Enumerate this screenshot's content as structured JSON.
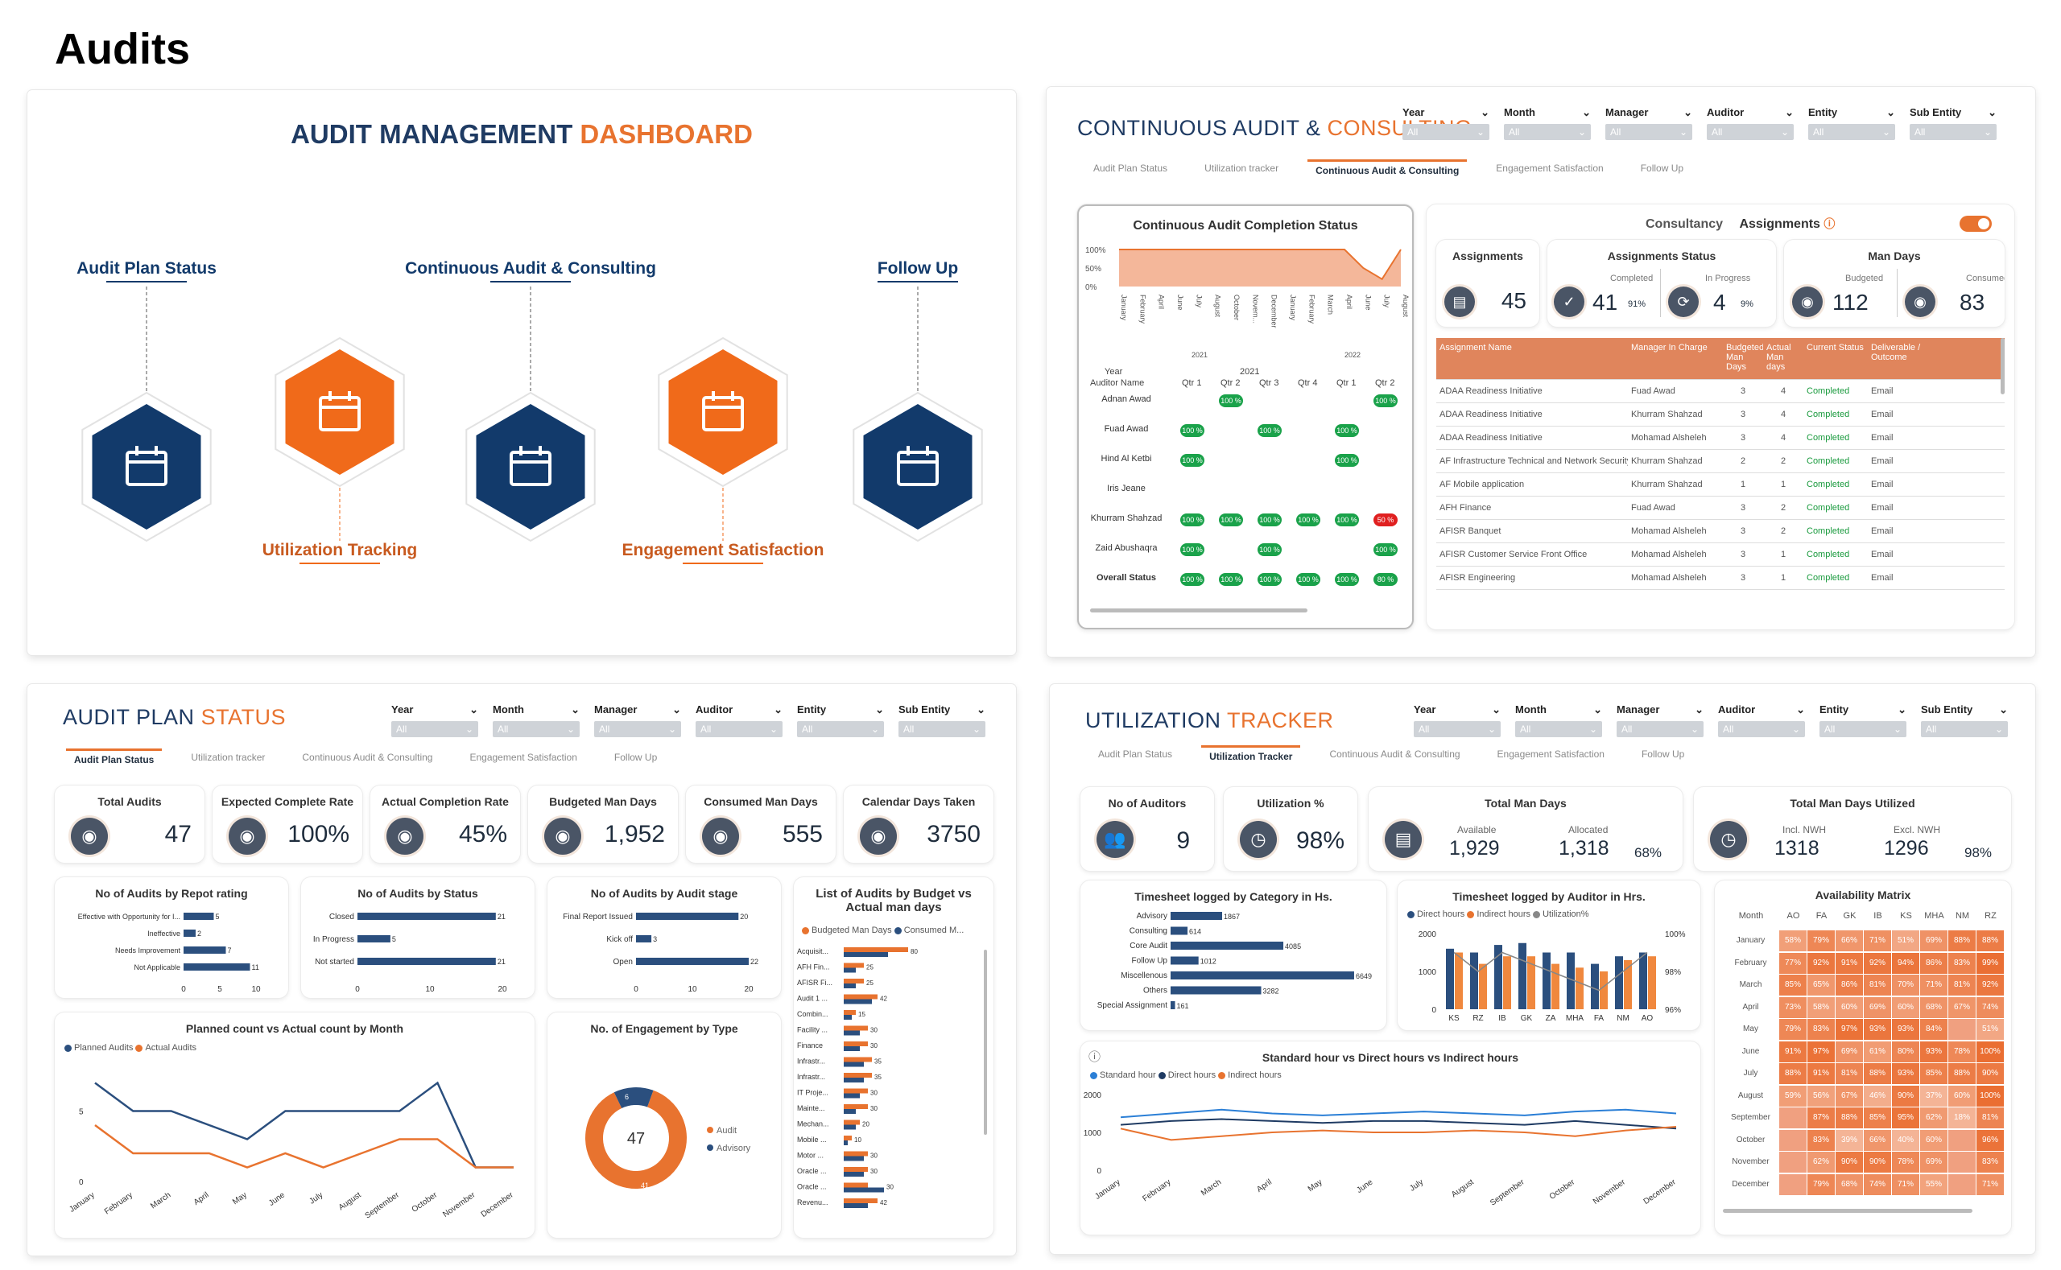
{
  "page_title": "Audits",
  "dashboard": {
    "title_a": "AUDIT MANAGEMENT ",
    "title_b": "DASHBOARD",
    "nodes": [
      {
        "label": "Audit Plan Status",
        "icon": "calendar-icon",
        "color": "navy",
        "pos": "top"
      },
      {
        "label": "Utilization Tracking",
        "icon": "calendar-clock-icon",
        "color": "orange",
        "pos": "bottom"
      },
      {
        "label": "Continuous Audit & Consulting",
        "icon": "calendar-user-icon",
        "color": "navy",
        "pos": "top"
      },
      {
        "label": "Engagement Satisfaction",
        "icon": "rating-stars-icon",
        "color": "orange",
        "pos": "bottom"
      },
      {
        "label": "Follow Up",
        "icon": "checklist-chart-icon",
        "color": "navy",
        "pos": "top"
      }
    ]
  },
  "filters": {
    "labels": [
      "Year",
      "Month",
      "Manager",
      "Auditor",
      "Entity",
      "Sub Entity"
    ],
    "value": "All"
  },
  "tabs": [
    "Audit Plan Status",
    "Utilization tracker",
    "Continuous Audit & Consulting",
    "Engagement Satisfaction",
    "Follow Up"
  ],
  "tabs_ut": [
    "Audit Plan Status",
    "Utilization Tracker",
    "Continuous Audit & Consulting",
    "Engagement Satisfaction",
    "Follow Up"
  ],
  "continuous": {
    "title_a": "CONTINUOUS AUDIT & ",
    "title_b": "CONSULTING",
    "completion_title": "Continuous Audit Completion Status",
    "y_ticks": [
      "100%",
      "50%",
      "0%"
    ],
    "months": [
      "January",
      "February",
      "April",
      "June",
      "July",
      "August",
      "October",
      "Novem...",
      "December",
      "January",
      "February",
      "March",
      "April",
      "June",
      "July",
      "August"
    ],
    "years": [
      "2021",
      "2022"
    ],
    "grid_year": "2021",
    "grid_header": [
      "Year",
      "Auditor Name",
      "Qtr 1",
      "Qtr 2",
      "Qtr 3",
      "Qtr 4",
      "Qtr 1",
      "Qtr 2"
    ],
    "auditors": [
      "Adnan Awad",
      "Fuad Awad",
      "Hind Al Ketbi",
      "Iris Jeane",
      "Khurram Shahzad",
      "Zaid Abushaqra",
      "Overall Status"
    ],
    "pill_value": "100 %",
    "pill_red": "50 %",
    "pill_80": "80 %",
    "consultancy": "Consultancy",
    "assignments_toggle": "Assignments",
    "kpi_assign": {
      "label": "Assignments",
      "value": "45"
    },
    "kpi_status": {
      "label": "Assignments Status",
      "completed_lbl": "Completed",
      "completed": "41",
      "completed_pct": "91%",
      "inprog_lbl": "In Progress",
      "inprog": "4",
      "inprog_pct": "9%"
    },
    "kpi_mandays": {
      "label": "Man Days",
      "budget_lbl": "Budgeted",
      "budget": "112",
      "consumed_lbl": "Consumed",
      "consumed": "83"
    },
    "table_head": [
      "Assignment Name",
      "Manager In Charge",
      "Budgeted Man Days",
      "Actual Man days",
      "Current Status",
      "Deliverable / Outcome"
    ],
    "table_rows": [
      [
        "ADAA Readiness Initiative",
        "Fuad Awad",
        "3",
        "4",
        "Completed",
        "Email"
      ],
      [
        "ADAA Readiness Initiative",
        "Khurram Shahzad",
        "3",
        "4",
        "Completed",
        "Email"
      ],
      [
        "ADAA Readiness Initiative",
        "Mohamad Alsheleh",
        "3",
        "4",
        "Completed",
        "Email"
      ],
      [
        "AF Infrastructure Technical and Network Security",
        "Khurram Shahzad",
        "2",
        "2",
        "Completed",
        "Email"
      ],
      [
        "AF Mobile application",
        "Khurram Shahzad",
        "1",
        "1",
        "Completed",
        "Email"
      ],
      [
        "AFH Finance",
        "Fuad Awad",
        "3",
        "2",
        "Completed",
        "Email"
      ],
      [
        "AFISR Banquet",
        "Mohamad Alsheleh",
        "3",
        "2",
        "Completed",
        "Email"
      ],
      [
        "AFISR Customer Service Front Office",
        "Mohamad Alsheleh",
        "3",
        "1",
        "Completed",
        "Email"
      ],
      [
        "AFISR Engineering",
        "Mohamad Alsheleh",
        "3",
        "1",
        "Completed",
        "Email"
      ]
    ]
  },
  "plan": {
    "title_a": "AUDIT PLAN ",
    "title_b": "STATUS",
    "kpis": [
      {
        "label": "Total Audits",
        "value": "47",
        "icon": "clipboard-icon"
      },
      {
        "label": "Expected Complete Rate",
        "value": "100%",
        "icon": "target-icon"
      },
      {
        "label": "Actual Completion Rate",
        "value": "45%",
        "icon": "double-check-icon"
      },
      {
        "label": "Budgeted Man Days",
        "value": "1,952",
        "icon": "user-calendar-icon"
      },
      {
        "label": "Consumed Man Days",
        "value": "555",
        "icon": "user-check-icon"
      },
      {
        "label": "Calendar Days Taken",
        "value": "3750",
        "icon": "calendar-icon"
      }
    ],
    "rating_title": "No of Audits by Repot rating",
    "status_title": "No of Audits by Status",
    "stage_title": "No of Audits by Audit stage",
    "budget_title": "List of Audits by Budget vs Actual man days",
    "budget_legend": [
      "Budgeted Man Days",
      "Consumed M..."
    ],
    "line_title": "Planned count vs Actual count by Month",
    "line_legend": [
      "Planned Audits",
      "Actual Audits"
    ],
    "donut_title": "No. of Engagement by Type",
    "donut_legend": [
      "Audit",
      "Advisory"
    ]
  },
  "util": {
    "title_a": "UTILIZATION ",
    "title_b": "TRACKER",
    "auditors": {
      "label": "No of Auditors",
      "value": "9"
    },
    "utilization": {
      "label": "Utilization %",
      "value": "98%"
    },
    "tmd": {
      "label": "Total Man Days",
      "avail_lbl": "Available",
      "avail": "1,929",
      "alloc_lbl": "Allocated",
      "alloc": "1,318",
      "pct": "68%"
    },
    "tmdu": {
      "label": "Total Man Days Utilized",
      "incl_lbl": "Incl. NWH",
      "incl": "1318",
      "excl_lbl": "Excl. NWH",
      "excl": "1296",
      "pct": "98%"
    },
    "cat_title": "Timesheet logged by Category in Hs.",
    "aud_title": "Timesheet logged by Auditor in Hrs.",
    "aud_legend": [
      "Direct hours",
      "Indirect hours",
      "Utilization%"
    ],
    "std_title": "Standard hour vs Direct hours vs Indirect hours",
    "std_legend": [
      "Standard hour",
      "Direct hours",
      "Indirect hours"
    ],
    "avail_title": "Availability Matrix",
    "avail_cols": [
      "Month",
      "AO",
      "FA",
      "GK",
      "IB",
      "KS",
      "MHA",
      "NM",
      "RZ"
    ],
    "avail_rows": [
      [
        "January",
        "58%",
        "79%",
        "66%",
        "71%",
        "51%",
        "69%",
        "88%",
        "88%"
      ],
      [
        "February",
        "77%",
        "92%",
        "91%",
        "92%",
        "94%",
        "86%",
        "83%",
        "99%"
      ],
      [
        "March",
        "85%",
        "65%",
        "86%",
        "81%",
        "70%",
        "71%",
        "81%",
        "92%"
      ],
      [
        "April",
        "73%",
        "58%",
        "60%",
        "69%",
        "60%",
        "68%",
        "67%",
        "74%"
      ],
      [
        "May",
        "79%",
        "83%",
        "97%",
        "93%",
        "93%",
        "84%",
        "",
        "51%"
      ],
      [
        "June",
        "91%",
        "97%",
        "69%",
        "61%",
        "80%",
        "93%",
        "78%",
        "100%"
      ],
      [
        "July",
        "88%",
        "91%",
        "81%",
        "88%",
        "93%",
        "85%",
        "88%",
        "90%"
      ],
      [
        "August",
        "59%",
        "56%",
        "67%",
        "46%",
        "90%",
        "37%",
        "60%",
        "100%"
      ],
      [
        "September",
        "",
        "87%",
        "88%",
        "85%",
        "95%",
        "62%",
        "18%",
        "81%"
      ],
      [
        "October",
        "",
        "83%",
        "39%",
        "66%",
        "40%",
        "60%",
        "",
        "96%"
      ],
      [
        "November",
        "",
        "62%",
        "90%",
        "90%",
        "78%",
        "69%",
        "",
        "83%"
      ],
      [
        "December",
        "",
        "79%",
        "68%",
        "74%",
        "71%",
        "55%",
        "",
        "71%"
      ]
    ]
  },
  "chart_data": [
    {
      "type": "line",
      "title": "Continuous Audit Completion Status",
      "ylim": [
        0,
        100
      ],
      "series": [
        {
          "name": "Completion %",
          "values": [
            100,
            100,
            100,
            100,
            100,
            100,
            100,
            100,
            100,
            100,
            100,
            100,
            100,
            50,
            20,
            100
          ]
        }
      ]
    },
    {
      "type": "bar",
      "title": "No of Audits by Repot rating",
      "categories": [
        "Effective with Opportunity for I...",
        "Ineffective",
        "Needs Improvement",
        "Not Applicable"
      ],
      "values": [
        5,
        2,
        7,
        11
      ],
      "xticks": [
        "0",
        "5",
        "10"
      ]
    },
    {
      "type": "bar",
      "title": "No of Audits by Status",
      "categories": [
        "Closed",
        "In Progress",
        "Not started"
      ],
      "values": [
        21,
        5,
        21
      ],
      "xticks": [
        "0",
        "10",
        "20"
      ]
    },
    {
      "type": "bar",
      "title": "No of Audits by Audit stage",
      "categories": [
        "Final Report Issued",
        "Kick off",
        "Open"
      ],
      "values": [
        20,
        3,
        22
      ],
      "xticks": [
        "0",
        "10",
        "20"
      ]
    },
    {
      "type": "bar",
      "title": "List of Audits by Budget vs Actual man days",
      "categories": [
        "Acquisit...",
        "AFH Fin...",
        "AFISR Fi...",
        "Audit 1 ...",
        "Combin...",
        "Facility ...",
        "Finance",
        "Infrastr...",
        "Infrastr...",
        "IT Proje...",
        "Mainte...",
        "Mechan...",
        "Mobile ...",
        "Motor ...",
        "Oracle ...",
        "Oracle ...",
        "Revenu..."
      ],
      "series": [
        {
          "name": "Budgeted Man Days",
          "values": [
            80,
            25,
            25,
            42,
            15,
            30,
            30,
            35,
            35,
            30,
            30,
            20,
            10,
            30,
            30,
            30,
            42
          ]
        },
        {
          "name": "Consumed Man Days",
          "values": [
            55,
            15,
            15,
            35,
            10,
            20,
            20,
            25,
            25,
            20,
            15,
            15,
            5,
            25,
            25,
            50,
            30
          ]
        }
      ]
    },
    {
      "type": "line",
      "title": "Planned count vs Actual count by Month",
      "categories": [
        "January",
        "February",
        "March",
        "April",
        "May",
        "June",
        "July",
        "August",
        "September",
        "October",
        "November",
        "December"
      ],
      "yticks": [
        "0",
        "5"
      ],
      "series": [
        {
          "name": "Planned Audits",
          "values": [
            7,
            5,
            5,
            4,
            3,
            5,
            5,
            5,
            5,
            7,
            1,
            1
          ]
        },
        {
          "name": "Actual Audits",
          "values": [
            4,
            2,
            2,
            2,
            1,
            2,
            1,
            2,
            3,
            3,
            1,
            1
          ]
        }
      ]
    },
    {
      "type": "pie",
      "title": "No. of Engagement by Type",
      "center_label": "47",
      "categories": [
        "Audit",
        "Advisory"
      ],
      "values": [
        41,
        6
      ]
    },
    {
      "type": "bar",
      "title": "Timesheet logged by Category in Hs.",
      "categories": [
        "Advisory",
        "Consulting",
        "Core Audit",
        "Follow Up",
        "Miscellenous",
        "Others",
        "Special Assignment"
      ],
      "values": [
        1867,
        614,
        4085,
        1012,
        6649,
        3282,
        161
      ]
    },
    {
      "type": "bar",
      "title": "Timesheet logged by Auditor in Hrs.",
      "categories": [
        "KS",
        "RZ",
        "IB",
        "GK",
        "ZA",
        "MHA",
        "FA",
        "NM",
        "AO"
      ],
      "yticks": [
        "0",
        "1000",
        "2000"
      ],
      "y2ticks": [
        "96%",
        "98%",
        "100%"
      ],
      "series": [
        {
          "name": "Direct hours",
          "values": [
            1600,
            1500,
            1700,
            1750,
            1500,
            1500,
            1200,
            1400,
            1500
          ]
        },
        {
          "name": "Indirect hours",
          "values": [
            1500,
            1200,
            1400,
            1400,
            1200,
            1100,
            1000,
            1300,
            1400
          ]
        },
        {
          "name": "Utilization%",
          "values": [
            99,
            98,
            99,
            98.5,
            98,
            97.5,
            97,
            98,
            99
          ]
        }
      ]
    },
    {
      "type": "line",
      "title": "Standard hour vs Direct hours vs Indirect hours",
      "categories": [
        "January",
        "February",
        "March",
        "April",
        "May",
        "June",
        "July",
        "August",
        "September",
        "October",
        "November",
        "December"
      ],
      "yticks": [
        "0",
        "1000",
        "2000"
      ],
      "series": [
        {
          "name": "Standard hour",
          "values": [
            1400,
            1500,
            1600,
            1500,
            1450,
            1500,
            1550,
            1500,
            1450,
            1550,
            1600,
            1500
          ]
        },
        {
          "name": "Direct hours",
          "values": [
            1200,
            1300,
            1350,
            1300,
            1250,
            1300,
            1300,
            1250,
            1200,
            1300,
            1200,
            1100
          ]
        },
        {
          "name": "Indirect hours",
          "values": [
            1100,
            800,
            900,
            1000,
            1050,
            1000,
            1000,
            1050,
            1000,
            900,
            1050,
            1150
          ]
        }
      ]
    }
  ]
}
